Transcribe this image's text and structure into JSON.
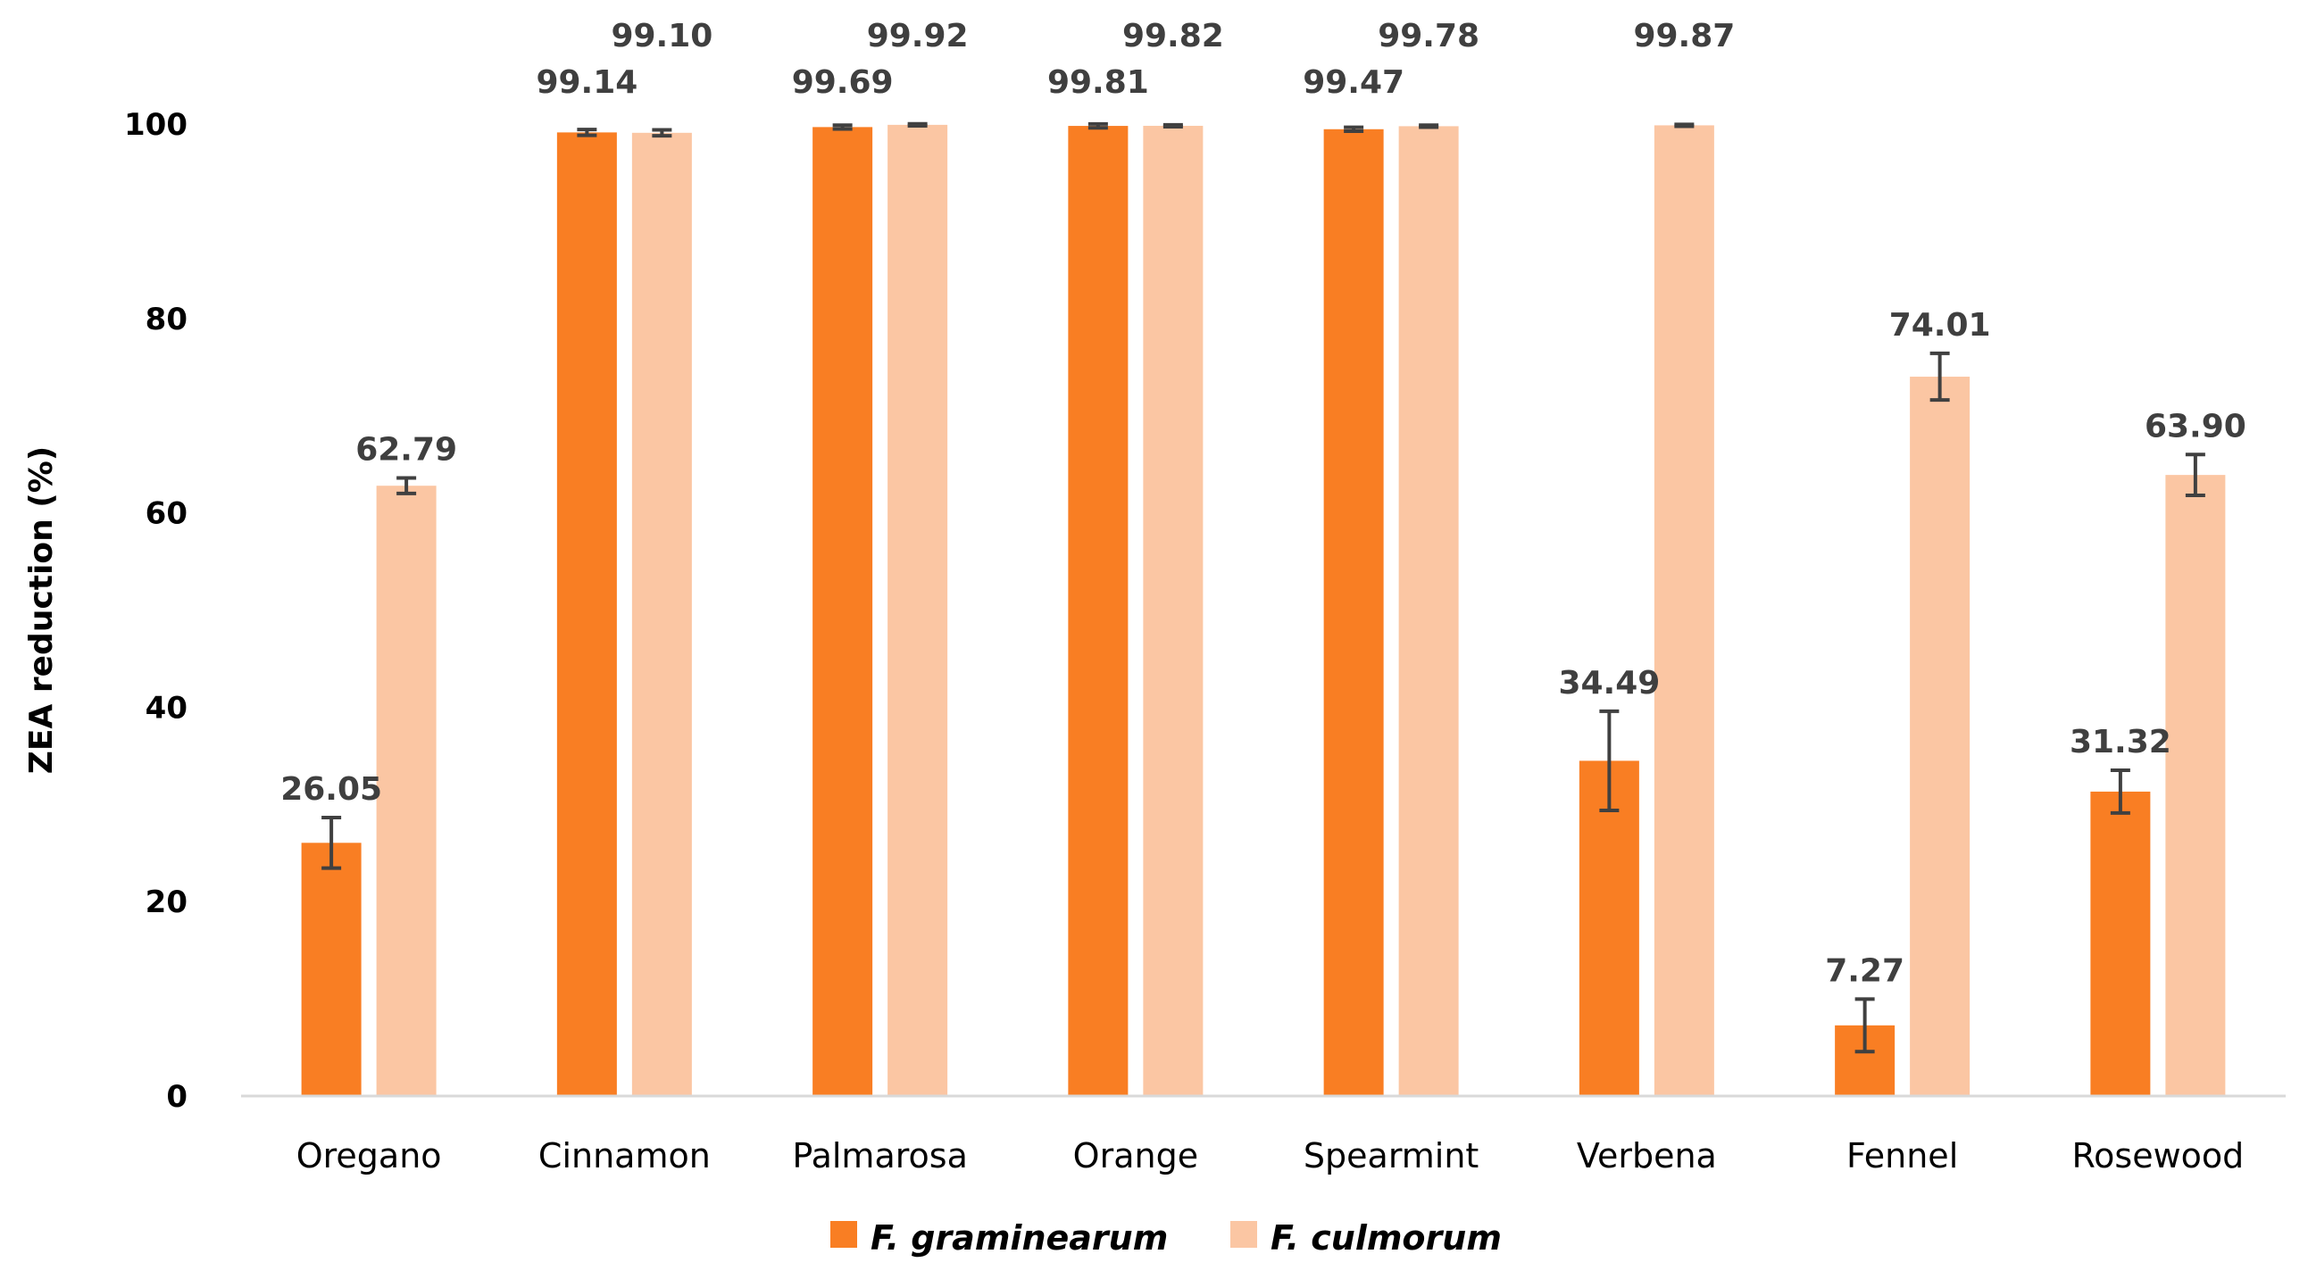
{
  "chart_data": {
    "type": "bar",
    "title": "",
    "xlabel": "",
    "ylabel": "ZEA reduction (%)",
    "ylim": [
      0,
      100
    ],
    "yticks": [
      "0",
      "20",
      "40",
      "60",
      "80",
      "100"
    ],
    "grid": false,
    "legend_position": "bottom",
    "categories": [
      "Oregano",
      "Cinnamon",
      "Palmarosa",
      "Orange",
      "Spearmint",
      "Verbena",
      "Fennel",
      "Rosewood"
    ],
    "series": [
      {
        "name": "F. graminearum",
        "color": "#f97e23",
        "values": [
          26.05,
          99.14,
          99.69,
          99.81,
          99.47,
          34.49,
          7.27,
          31.32
        ],
        "labels": [
          "26.05",
          "99.14",
          "99.69",
          "99.81",
          "99.47",
          "34.49",
          "7.27",
          "31.32"
        ],
        "errors": [
          2.6,
          0.3,
          0.2,
          0.2,
          0.2,
          5.1,
          2.7,
          2.2
        ]
      },
      {
        "name": "F. culmorum",
        "color": "#fbc6a3",
        "values": [
          62.79,
          99.1,
          99.92,
          99.82,
          99.78,
          99.87,
          74.01,
          63.9
        ],
        "labels": [
          "62.79",
          "99.10",
          "99.92",
          "99.82",
          "99.78",
          "99.87",
          "74.01",
          "63.90"
        ],
        "errors": [
          0.8,
          0.3,
          0.1,
          0.1,
          0.1,
          0.1,
          2.4,
          2.1
        ]
      }
    ]
  }
}
